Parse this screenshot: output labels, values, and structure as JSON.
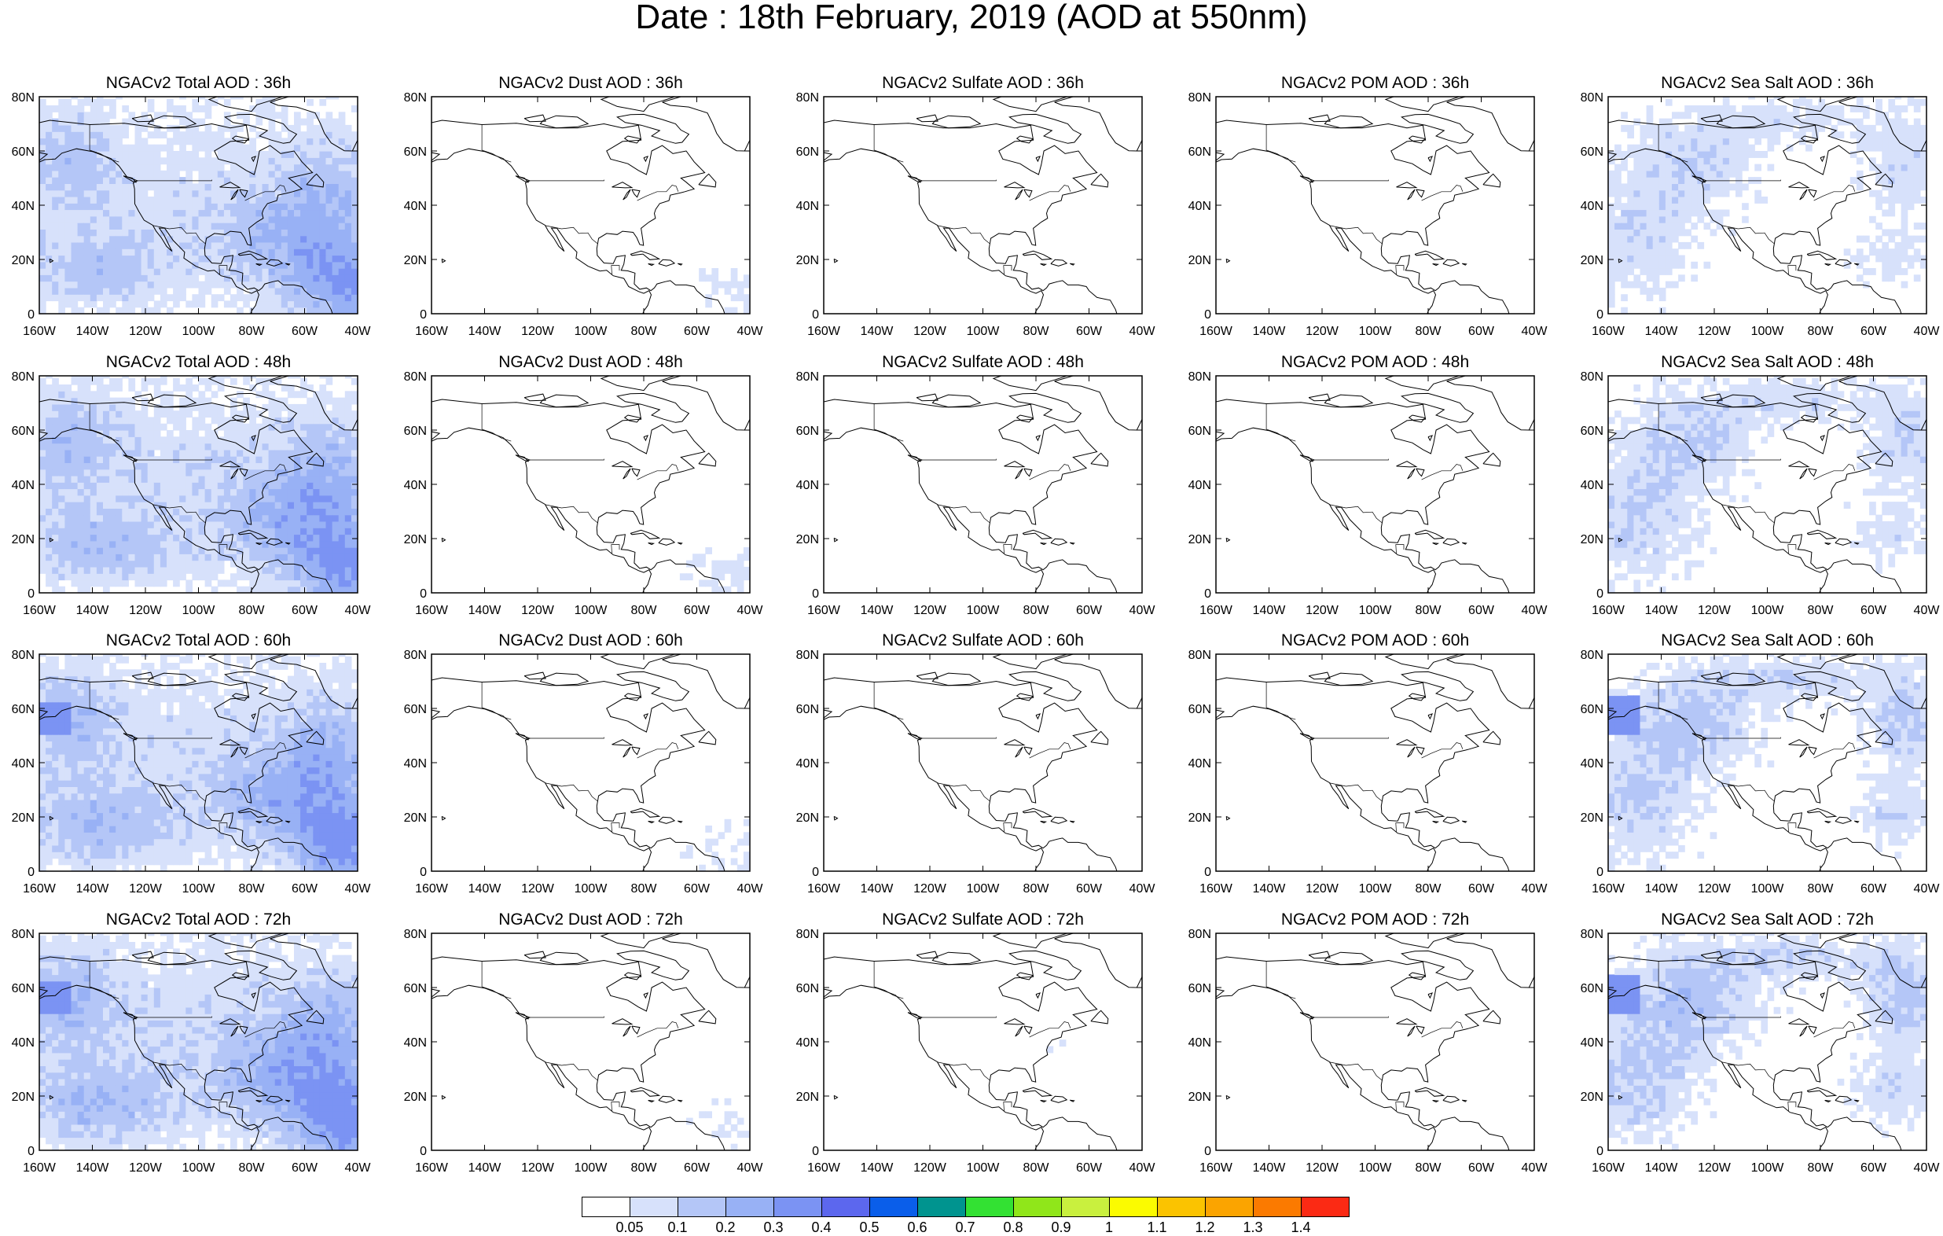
{
  "title": "Date : 18th February, 2019 (AOD at 550nm)",
  "species": [
    {
      "key": "total",
      "label_prefix": "NGACv2 Total AOD"
    },
    {
      "key": "dust",
      "label_prefix": "NGACv2 Dust AOD"
    },
    {
      "key": "sulfate",
      "label_prefix": "NGACv2 Sulfate AOD"
    },
    {
      "key": "pom",
      "label_prefix": "NGACv2 POM AOD"
    },
    {
      "key": "seasalt",
      "label_prefix": "NGACv2 Sea Salt AOD"
    }
  ],
  "panel_titles": [
    [
      "NGACv2 Total AOD : 36h",
      "NGACv2 Dust AOD : 36h",
      "NGACv2 Sulfate AOD : 36h",
      "NGACv2 POM AOD : 36h",
      "NGACv2 Sea Salt AOD : 36h"
    ],
    [
      "NGACv2 Total AOD : 48h",
      "NGACv2 Dust AOD : 48h",
      "NGACv2 Sulfate AOD : 48h",
      "NGACv2 POM AOD : 48h",
      "NGACv2 Sea Salt AOD : 48h"
    ],
    [
      "NGACv2 Total AOD : 60h",
      "NGACv2 Dust AOD : 60h",
      "NGACv2 Sulfate AOD : 60h",
      "NGACv2 POM AOD : 60h",
      "NGACv2 Sea Salt AOD : 60h"
    ],
    [
      "NGACv2 Total AOD : 72h",
      "NGACv2 Dust AOD : 72h",
      "NGACv2 Sulfate AOD : 72h",
      "NGACv2 POM AOD : 72h",
      "NGACv2 Sea Salt  AOD : 72h"
    ]
  ],
  "forecast_hours": [
    "36h",
    "48h",
    "60h",
    "72h"
  ],
  "lat_ticks": [
    "0",
    "20N",
    "40N",
    "60N",
    "80N"
  ],
  "lon_ticks": [
    "160W",
    "140W",
    "120W",
    "100W",
    "80W",
    "60W",
    "40W"
  ],
  "lat_values": [
    0,
    20,
    40,
    60,
    80
  ],
  "lon_values": [
    -160,
    -140,
    -120,
    -100,
    -80,
    -60,
    -40
  ],
  "map_extent": {
    "lon_min": -160,
    "lon_max": -40,
    "lat_min": 0,
    "lat_max": 80
  },
  "colorbar": {
    "labels": [
      "0.05",
      "0.1",
      "0.2",
      "0.3",
      "0.4",
      "0.5",
      "0.6",
      "0.7",
      "0.8",
      "0.9",
      "1",
      "1.1",
      "1.2",
      "1.3",
      "1.4"
    ],
    "colors": [
      "#ffffff",
      "#d7e1fb",
      "#b4c6f7",
      "#98b1f5",
      "#7b93f3",
      "#5c67ee",
      "#0a5eea",
      "#00948f",
      "#33e133",
      "#90e61a",
      "#c9f03e",
      "#fbfb00",
      "#fbc300",
      "#fba400",
      "#fb7a00",
      "#fb2a14"
    ]
  },
  "panel_intensity": {
    "total": [
      0.55,
      0.6,
      0.62,
      0.65
    ],
    "dust": [
      0.12,
      0.12,
      0.12,
      0.1
    ],
    "sulfate": [
      0.03,
      0.03,
      0.05,
      0.07
    ],
    "pom": [
      0.02,
      0.02,
      0.02,
      0.02
    ],
    "seasalt": [
      0.4,
      0.45,
      0.5,
      0.55
    ]
  }
}
